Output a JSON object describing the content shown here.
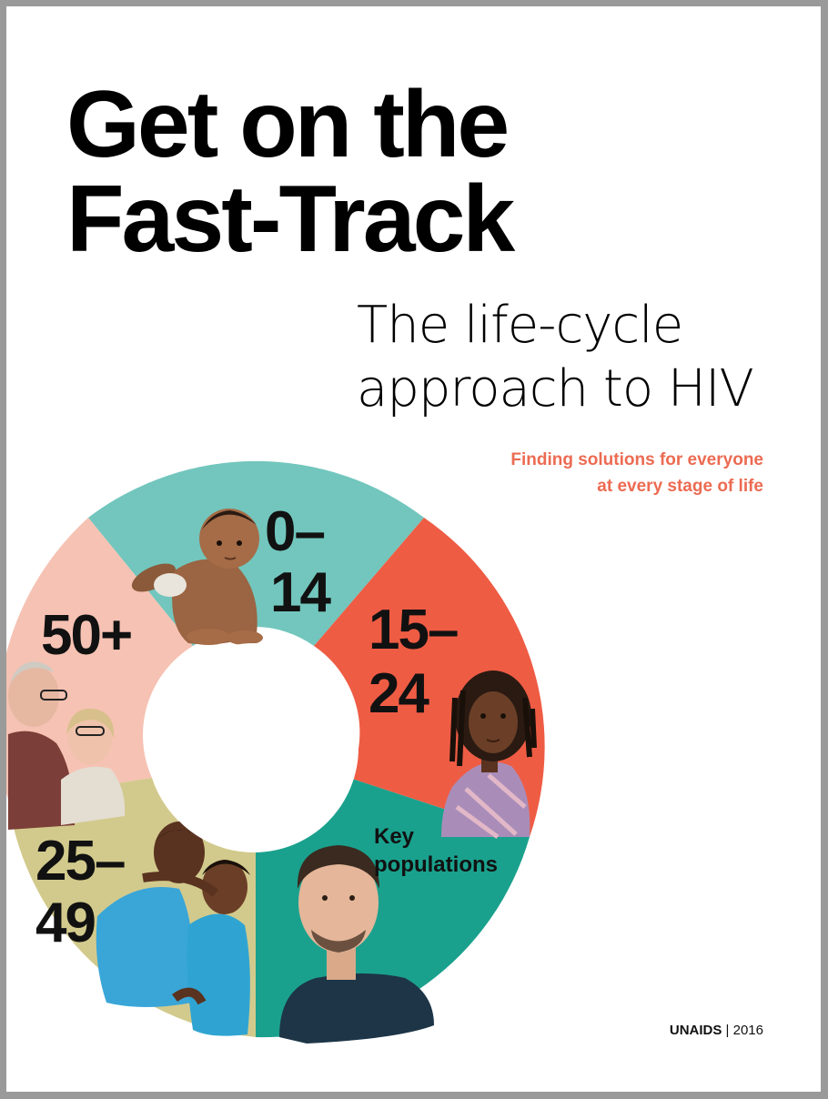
{
  "title": {
    "line1": "Get on the",
    "line2": "Fast-Track"
  },
  "subtitle": {
    "line1": "The life-cycle",
    "line2": "approach to HIV"
  },
  "tagline": {
    "line1": "Finding solutions for everyone",
    "line2": "at every stage of life",
    "color": "#ec6b52"
  },
  "segments": [
    {
      "id": "0-14",
      "label_line1": "0–",
      "label_line2": "14",
      "color": "#72c6bd",
      "photo": "baby-photo"
    },
    {
      "id": "15-24",
      "label_line1": "15–",
      "label_line2": "24",
      "color": "#ef5c44",
      "photo": "teen-photo"
    },
    {
      "id": "key",
      "label_line1": "Key",
      "label_line2": "populations",
      "color": "#1aa18d",
      "photo": "young-man-photo"
    },
    {
      "id": "25-49",
      "label_line1": "25–",
      "label_line2": "49",
      "color": "#d2ca8c",
      "photo": "couple-photo"
    },
    {
      "id": "50+",
      "label_line1": "50+",
      "label_line2": "",
      "color": "#f6c2b3",
      "photo": "elderly-couple-photo"
    }
  ],
  "footer": {
    "org": "UNAIDS",
    "separator": "|",
    "year": "2016"
  }
}
